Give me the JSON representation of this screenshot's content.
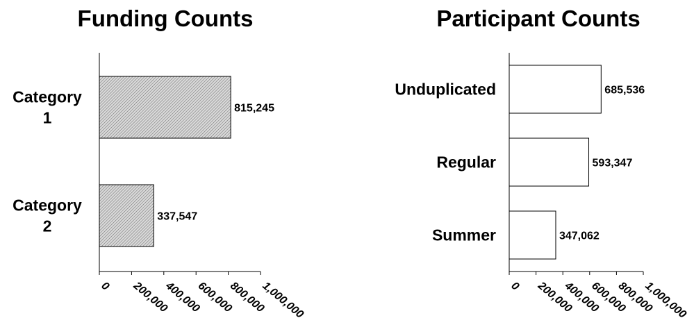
{
  "chart_data": [
    {
      "type": "bar",
      "orientation": "horizontal",
      "title": "Funding Counts",
      "categories": [
        "Category 1",
        "Category 2"
      ],
      "category_lines": [
        [
          "Category",
          "1"
        ],
        [
          "Category",
          "2"
        ]
      ],
      "values": [
        815245,
        337547
      ],
      "data_labels": [
        "815,245",
        "337,547"
      ],
      "xlim": [
        0,
        1000000
      ],
      "xticks": [
        0,
        200000,
        400000,
        600000,
        800000,
        1000000
      ],
      "xtick_labels": [
        "0",
        "200,000",
        "400,000",
        "600,000",
        "800,000",
        "1,000,000"
      ],
      "bar_fill": "hatched",
      "bar_color": "#cfcfcf",
      "grid": false
    },
    {
      "type": "bar",
      "orientation": "horizontal",
      "title": "Participant Counts",
      "categories": [
        "Unduplicated",
        "Regular",
        "Summer"
      ],
      "category_lines": [
        [
          "Unduplicated"
        ],
        [
          "Regular"
        ],
        [
          "Summer"
        ]
      ],
      "values": [
        685536,
        593347,
        347062
      ],
      "data_labels": [
        "685,536",
        "593,347",
        "347,062"
      ],
      "xlim": [
        0,
        1000000
      ],
      "xticks": [
        0,
        200000,
        400000,
        600000,
        800000,
        1000000
      ],
      "xtick_labels": [
        "0",
        "200,000",
        "400,000",
        "600,000",
        "800,000",
        "1,000,000"
      ],
      "bar_fill": "solid",
      "bar_color": "#ffffff",
      "grid": false
    }
  ]
}
